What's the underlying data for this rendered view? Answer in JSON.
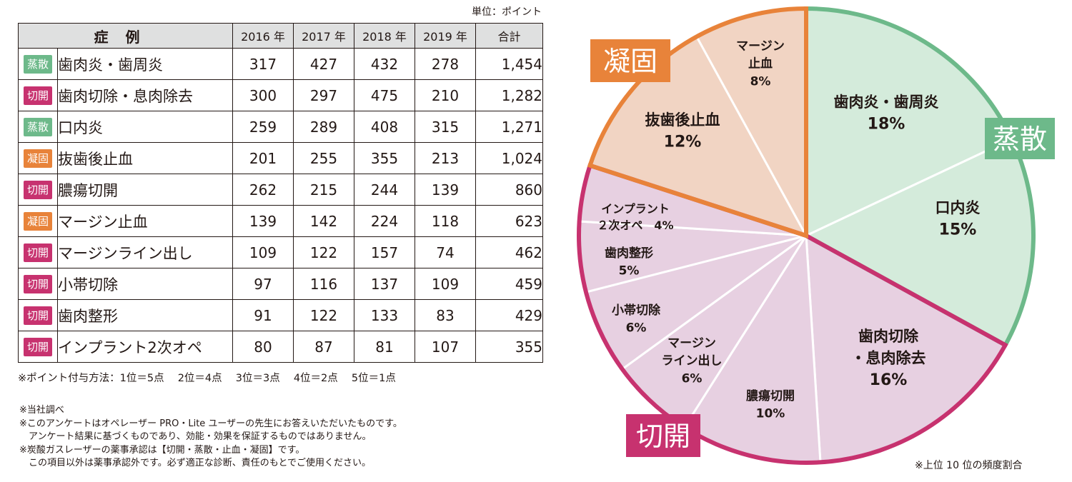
{
  "unit_label": "単位：ポイント",
  "table": {
    "headers": [
      "症例",
      "2016 年",
      "2017 年",
      "2018 年",
      "2019 年",
      "合計"
    ],
    "rows": [
      {
        "tag": "蒸散",
        "tag_color": "#6db98a",
        "name": "歯肉炎・歯周炎",
        "values": [
          "317",
          "427",
          "432",
          "278"
        ],
        "total": "1,454"
      },
      {
        "tag": "切開",
        "tag_color": "#c7326f",
        "name": "歯肉切除・息肉除去",
        "values": [
          "300",
          "297",
          "475",
          "210"
        ],
        "total": "1,282"
      },
      {
        "tag": "蒸散",
        "tag_color": "#6db98a",
        "name": "口内炎",
        "values": [
          "259",
          "289",
          "408",
          "315"
        ],
        "total": "1,271"
      },
      {
        "tag": "凝固",
        "tag_color": "#e8833a",
        "name": "抜歯後止血",
        "values": [
          "201",
          "255",
          "355",
          "213"
        ],
        "total": "1,024"
      },
      {
        "tag": "切開",
        "tag_color": "#c7326f",
        "name": "膿瘍切開",
        "values": [
          "262",
          "215",
          "244",
          "139"
        ],
        "total": "860"
      },
      {
        "tag": "凝固",
        "tag_color": "#e8833a",
        "name": "マージン止血",
        "values": [
          "139",
          "142",
          "224",
          "118"
        ],
        "total": "623"
      },
      {
        "tag": "切開",
        "tag_color": "#c7326f",
        "name": "マージンライン出し",
        "values": [
          "109",
          "122",
          "157",
          "74"
        ],
        "total": "462"
      },
      {
        "tag": "切開",
        "tag_color": "#c7326f",
        "name": "小帯切除",
        "values": [
          "97",
          "116",
          "137",
          "109"
        ],
        "total": "459"
      },
      {
        "tag": "切開",
        "tag_color": "#c7326f",
        "name": "歯肉整形",
        "values": [
          "91",
          "122",
          "133",
          "83"
        ],
        "total": "429"
      },
      {
        "tag": "切開",
        "tag_color": "#c7326f",
        "name": "インプラント2次オペ",
        "values": [
          "80",
          "87",
          "81",
          "107"
        ],
        "total": "355"
      }
    ]
  },
  "points_note": "※ポイント付与方法：1位＝5点　 2位＝4点　 3位＝3点　 4位＝2点　 5位＝1点",
  "notes": [
    "※当社調べ",
    "※このアンケートはオペレーザー PRO・Lite ユーザーの先生にお答えいただいたものです。",
    "　アンケート結果に基づくものであり、効能・効果を保証するものではありません。",
    "※炭酸ガスレーザーの薬事承認は【切開・蒸散・止血・凝固】です。",
    "　この項目以外は薬事承認外です。必ず適正な診断、責任のもとでご使用ください。"
  ],
  "footnote": "※上位 10 位の頻度割合",
  "chart_data": {
    "type": "pie",
    "title": "",
    "slices": [
      {
        "label": [
          "歯肉炎・歯周炎"
        ],
        "pct_label": "18%",
        "value": 18,
        "group": "蒸散"
      },
      {
        "label": [
          "口内炎"
        ],
        "pct_label": "15%",
        "value": 15,
        "group": "蒸散"
      },
      {
        "label": [
          "歯肉切除",
          "・息肉除去"
        ],
        "pct_label": "16%",
        "value": 16,
        "group": "切開"
      },
      {
        "label": [
          "膿瘍切開"
        ],
        "pct_label": "10%",
        "value": 10,
        "group": "切開"
      },
      {
        "label": [
          "マージン",
          "ライン出し"
        ],
        "pct_label": "6%",
        "value": 6,
        "group": "切開"
      },
      {
        "label": [
          "小帯切除"
        ],
        "pct_label": "6%",
        "value": 6,
        "group": "切開"
      },
      {
        "label": [
          "歯肉整形"
        ],
        "pct_label": "5%",
        "value": 5,
        "group": "切開"
      },
      {
        "label": [
          "インプラント",
          "２次オペ　4%"
        ],
        "pct_label": "",
        "value": 4,
        "group": "切開"
      },
      {
        "label": [
          "抜歯後止血"
        ],
        "pct_label": "12%",
        "value": 12,
        "group": "凝固"
      },
      {
        "label": [
          "マージン",
          "止血"
        ],
        "pct_label": "8%",
        "value": 8,
        "group": "凝固"
      }
    ],
    "groups": [
      {
        "name": "蒸散",
        "color": "#6db98a",
        "fill": "#d4ebdb"
      },
      {
        "name": "切開",
        "color": "#c7326f",
        "fill": "#e7d0e1"
      },
      {
        "name": "凝固",
        "color": "#e8833a",
        "fill": "#f1d4c3"
      }
    ]
  }
}
